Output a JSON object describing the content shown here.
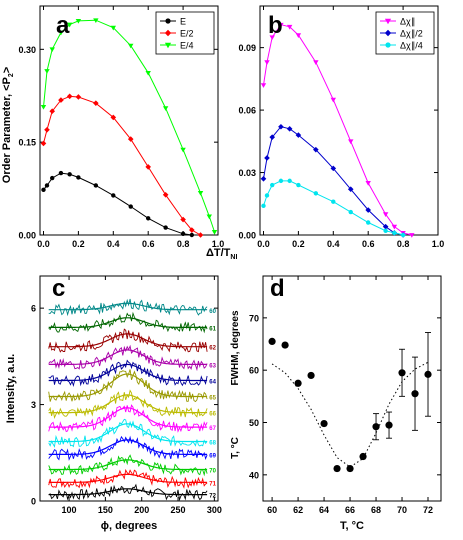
{
  "chart_data": [
    {
      "panel": "a",
      "type": "line",
      "ylabel": "Order Parameter, <P2>",
      "xlim": [
        -0.02,
        1.0
      ],
      "ylim": [
        0,
        0.37
      ],
      "xticks": [
        "0.0",
        "0.2",
        "0.4",
        "0.6",
        "0.8",
        "1.0"
      ],
      "xtick_values": [
        0,
        0.2,
        0.4,
        0.6,
        0.8,
        1.0
      ],
      "yticks": [
        "0.00",
        "0.15",
        "0.30"
      ],
      "ytick_values": [
        0,
        0.15,
        0.3
      ],
      "legend": [
        "E",
        "E/2",
        "E/4"
      ],
      "legend_position": "top-right",
      "series": [
        {
          "name": "E",
          "color": "#000000",
          "marker": "circle",
          "x": [
            0.0,
            0.02,
            0.05,
            0.1,
            0.15,
            0.2,
            0.3,
            0.4,
            0.5,
            0.6,
            0.7,
            0.8,
            0.85
          ],
          "y": [
            0.073,
            0.08,
            0.092,
            0.1,
            0.098,
            0.093,
            0.08,
            0.064,
            0.046,
            0.027,
            0.012,
            0.002,
            0.0
          ]
        },
        {
          "name": "E/2",
          "color": "#ff0000",
          "marker": "diamond",
          "x": [
            0.0,
            0.02,
            0.05,
            0.1,
            0.15,
            0.2,
            0.3,
            0.4,
            0.5,
            0.6,
            0.7,
            0.8,
            0.85,
            0.9
          ],
          "y": [
            0.148,
            0.17,
            0.2,
            0.218,
            0.224,
            0.223,
            0.213,
            0.19,
            0.155,
            0.11,
            0.065,
            0.025,
            0.008,
            0.0
          ]
        },
        {
          "name": "E/4",
          "color": "#00ff00",
          "marker": "triangle-down",
          "x": [
            0.0,
            0.02,
            0.05,
            0.1,
            0.15,
            0.2,
            0.3,
            0.4,
            0.5,
            0.6,
            0.7,
            0.8,
            0.9,
            0.95,
            0.98
          ],
          "y": [
            0.207,
            0.265,
            0.3,
            0.327,
            0.34,
            0.346,
            0.347,
            0.335,
            0.306,
            0.262,
            0.205,
            0.138,
            0.068,
            0.03,
            0.005
          ]
        }
      ]
    },
    {
      "panel": "b",
      "type": "line",
      "xlim": [
        -0.02,
        1.0
      ],
      "ylim": [
        0,
        0.11
      ],
      "xticks": [
        "0.0",
        "0.2",
        "0.4",
        "0.6",
        "0.8",
        "1.0"
      ],
      "xtick_values": [
        0,
        0.2,
        0.4,
        0.6,
        0.8,
        1.0
      ],
      "yticks": [
        "0.00",
        "0.03",
        "0.06",
        "0.09"
      ],
      "ytick_values": [
        0,
        0.03,
        0.06,
        0.09
      ],
      "legend": [
        "Δχ∥",
        "Δχ∥/2",
        "Δχ∥/4"
      ],
      "legend_position": "top-right",
      "series": [
        {
          "name": "Δχ∥",
          "color": "#ff00ff",
          "marker": "triangle-down",
          "x": [
            0.0,
            0.02,
            0.05,
            0.1,
            0.15,
            0.2,
            0.3,
            0.4,
            0.5,
            0.6,
            0.7,
            0.75,
            0.8,
            0.85
          ],
          "y": [
            0.072,
            0.083,
            0.095,
            0.101,
            0.1,
            0.096,
            0.083,
            0.065,
            0.045,
            0.025,
            0.01,
            0.004,
            0.001,
            0.0
          ]
        },
        {
          "name": "Δχ∥/2",
          "color": "#0000cc",
          "marker": "diamond",
          "x": [
            0.0,
            0.02,
            0.05,
            0.1,
            0.15,
            0.2,
            0.3,
            0.4,
            0.5,
            0.6,
            0.7,
            0.75,
            0.8
          ],
          "y": [
            0.027,
            0.037,
            0.047,
            0.052,
            0.051,
            0.048,
            0.041,
            0.032,
            0.022,
            0.012,
            0.004,
            0.001,
            0.0
          ]
        },
        {
          "name": "Δχ∥/4",
          "color": "#00e5ee",
          "marker": "circle",
          "x": [
            0.0,
            0.02,
            0.05,
            0.1,
            0.15,
            0.2,
            0.3,
            0.4,
            0.5,
            0.6,
            0.7,
            0.75,
            0.8
          ],
          "y": [
            0.014,
            0.019,
            0.024,
            0.026,
            0.026,
            0.024,
            0.02,
            0.016,
            0.011,
            0.006,
            0.002,
            0.001,
            0.0
          ]
        }
      ]
    },
    {
      "panel": "c",
      "type": "line",
      "xlabel": "ϕ, degrees",
      "ylabel": "Intensity, a.u.",
      "xlim": [
        60,
        305
      ],
      "ylim": [
        0,
        7
      ],
      "xticks": [
        "100",
        "150",
        "200",
        "250",
        "300"
      ],
      "xtick_values": [
        100,
        150,
        200,
        250,
        300
      ],
      "yticks": [
        "0",
        "3",
        "6"
      ],
      "ytick_values": [
        0,
        3,
        6
      ],
      "peak_center": 180,
      "curves": [
        {
          "label": "72",
          "color": "#000000",
          "offset": 0.2,
          "amplitude": 0.18
        },
        {
          "label": "71",
          "color": "#ff0000",
          "offset": 0.58,
          "amplitude": 0.25
        },
        {
          "label": "70",
          "color": "#00cc00",
          "offset": 0.98,
          "amplitude": 0.3
        },
        {
          "label": "69",
          "color": "#0000ff",
          "offset": 1.45,
          "amplitude": 0.45
        },
        {
          "label": "68",
          "color": "#00e5ee",
          "offset": 1.85,
          "amplitude": 0.55
        },
        {
          "label": "67",
          "color": "#ff00ff",
          "offset": 2.3,
          "amplitude": 0.6
        },
        {
          "label": "66",
          "color": "#bbbb00",
          "offset": 2.75,
          "amplitude": 0.55
        },
        {
          "label": "65",
          "color": "#999900",
          "offset": 3.25,
          "amplitude": 0.7
        },
        {
          "label": "64",
          "color": "#000099",
          "offset": 3.75,
          "amplitude": 0.5
        },
        {
          "label": "63",
          "color": "#aa00aa",
          "offset": 4.25,
          "amplitude": 0.45
        },
        {
          "label": "62",
          "color": "#990000",
          "offset": 4.8,
          "amplitude": 0.4
        },
        {
          "label": "61",
          "color": "#006600",
          "offset": 5.4,
          "amplitude": 0.3
        },
        {
          "label": "60",
          "color": "#008888",
          "offset": 5.95,
          "amplitude": 0.2
        }
      ]
    },
    {
      "panel": "d",
      "type": "scatter",
      "xlabel": "T, °C",
      "ylabel": "FWHM, degrees",
      "ylabel2": "T, °C",
      "xlim": [
        59.3,
        73
      ],
      "ylim": [
        35,
        78
      ],
      "xticks": [
        "60",
        "62",
        "64",
        "66",
        "68",
        "70",
        "72"
      ],
      "xtick_values": [
        60,
        62,
        64,
        66,
        68,
        70,
        72
      ],
      "yticks": [
        "40",
        "50",
        "60",
        "70"
      ],
      "ytick_values": [
        40,
        50,
        60,
        70
      ],
      "points": {
        "x": [
          60,
          61,
          62,
          63,
          64,
          65,
          66,
          67,
          68,
          69,
          70,
          71,
          72
        ],
        "y": [
          65.5,
          64.8,
          57.5,
          59.0,
          49.8,
          41.2,
          41.2,
          43.5,
          49.2,
          49.5,
          59.5,
          55.5,
          59.2
        ],
        "err": [
          0,
          0,
          0,
          0,
          0,
          0,
          0,
          0,
          2.5,
          2.5,
          4.5,
          7,
          8
        ]
      },
      "fit": {
        "x": [
          60,
          61,
          62,
          63,
          64,
          65,
          66,
          67,
          68,
          69,
          70,
          71,
          72
        ],
        "y": [
          61.2,
          59.5,
          56.5,
          52.5,
          47.6,
          43.3,
          41.5,
          43.1,
          48.0,
          53.5,
          57.8,
          60.2,
          61.5
        ]
      }
    }
  ],
  "labels": {
    "panel_a": "a",
    "panel_b": "b",
    "panel_c": "c",
    "panel_d": "d",
    "shared_xlabel": "ΔT/T",
    "shared_xlabel_sub": "NI",
    "ylabel_a_main": "Order Parameter, <P",
    "ylabel_a_sub": "2",
    "ylabel_a_end": ">"
  }
}
